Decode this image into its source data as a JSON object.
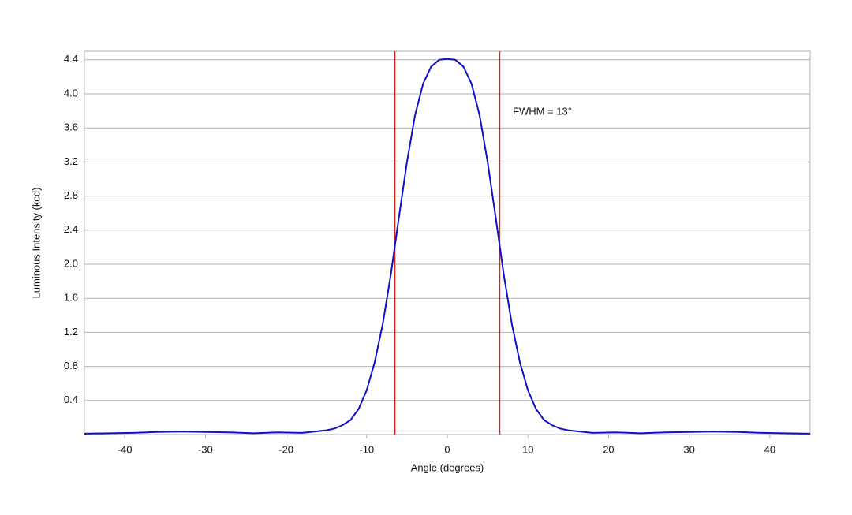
{
  "chart_data": {
    "type": "line",
    "xlabel": "Angle (degrees)",
    "ylabel": "Luminous Intensity (kcd)",
    "annotation": "FWHM = 13°",
    "x": [
      -45,
      -42,
      -39,
      -36,
      -33,
      -30,
      -27,
      -24,
      -21,
      -18,
      -15,
      -14,
      -13,
      -12,
      -11,
      -10,
      -9,
      -8,
      -7,
      -6,
      -5,
      -4,
      -3,
      -2,
      -1,
      0,
      1,
      2,
      3,
      4,
      5,
      6,
      7,
      8,
      9,
      10,
      11,
      12,
      13,
      14,
      15,
      18,
      21,
      24,
      27,
      30,
      33,
      36,
      39,
      42,
      45
    ],
    "values": [
      0.01,
      0.015,
      0.02,
      0.03,
      0.035,
      0.03,
      0.025,
      0.015,
      0.025,
      0.02,
      0.05,
      0.07,
      0.11,
      0.17,
      0.3,
      0.52,
      0.85,
      1.3,
      1.88,
      2.55,
      3.2,
      3.75,
      4.12,
      4.32,
      4.4,
      4.41,
      4.4,
      4.32,
      4.12,
      3.75,
      3.2,
      2.55,
      1.88,
      1.3,
      0.85,
      0.52,
      0.3,
      0.17,
      0.11,
      0.07,
      0.05,
      0.02,
      0.025,
      0.015,
      0.025,
      0.03,
      0.035,
      0.03,
      0.02,
      0.015,
      0.01
    ],
    "color": "#1010c8",
    "vlines": [
      -6.5,
      6.5
    ],
    "vline_color": "#d42020",
    "xlim": [
      -45,
      45
    ],
    "ylim": [
      0,
      4.5
    ],
    "xticks": [
      -40,
      -30,
      -20,
      -10,
      0,
      10,
      20,
      30,
      40
    ],
    "yticks": [
      0.4,
      0.8,
      1.2,
      1.6,
      {
        "value": 2,
        "label": "2.0"
      },
      2.4,
      2.8,
      3.2,
      3.6,
      {
        "value": 4,
        "label": "4.0"
      },
      4.4
    ],
    "grid": true
  }
}
